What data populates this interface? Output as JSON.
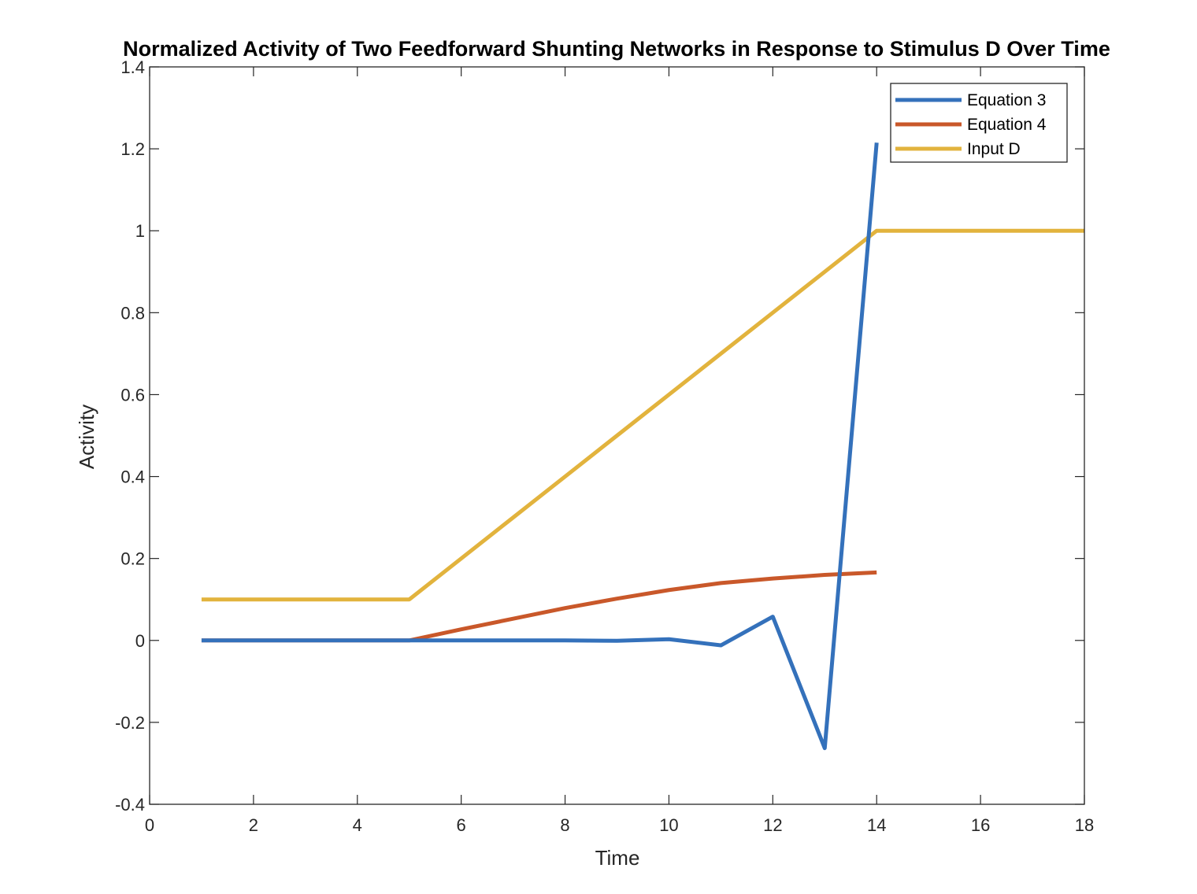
{
  "chart_data": {
    "type": "line",
    "title": "Normalized Activity of Two Feedforward Shunting Networks in Response to Stimulus D Over Time",
    "xlabel": "Time",
    "ylabel": "Activity",
    "xlim": [
      0,
      18
    ],
    "ylim": [
      -0.4,
      1.4
    ],
    "xticks": [
      0,
      2,
      4,
      6,
      8,
      10,
      12,
      14,
      16,
      18
    ],
    "xtick_labels": [
      "0",
      "2",
      "4",
      "6",
      "8",
      "10",
      "12",
      "14",
      "16",
      "18"
    ],
    "yticks": [
      -0.4,
      -0.2,
      0,
      0.2,
      0.4,
      0.6,
      0.8,
      1,
      1.2,
      1.4
    ],
    "ytick_labels": [
      "-0.4",
      "-0.2",
      "0",
      "0.2",
      "0.4",
      "0.6",
      "0.8",
      "1",
      "1.2",
      "1.4"
    ],
    "grid": false,
    "legend_position": "top-right",
    "series": [
      {
        "name": "Equation 3",
        "color": "#3471bb",
        "x": [
          1,
          2,
          3,
          4,
          5,
          6,
          7,
          8,
          9,
          10,
          11,
          12,
          13,
          14
        ],
        "y": [
          0,
          0,
          0,
          0,
          0,
          0,
          0,
          0,
          -0.001,
          0.003,
          -0.012,
          0.058,
          -0.263,
          1.215
        ]
      },
      {
        "name": "Equation 4",
        "color": "#c9582a",
        "x": [
          1,
          2,
          3,
          4,
          5,
          6,
          7,
          8,
          9,
          10,
          11,
          12,
          13,
          14
        ],
        "y": [
          0,
          0,
          0,
          0,
          0,
          0.027,
          0.053,
          0.079,
          0.102,
          0.123,
          0.14,
          0.151,
          0.16,
          0.166
        ]
      },
      {
        "name": "Input D",
        "color": "#e2b33d",
        "x": [
          1,
          2,
          3,
          4,
          5,
          6,
          7,
          8,
          9,
          10,
          11,
          12,
          13,
          14,
          15,
          16,
          17,
          18
        ],
        "y": [
          0.1,
          0.1,
          0.1,
          0.1,
          0.1,
          0.2,
          0.3,
          0.4,
          0.5,
          0.6,
          0.7,
          0.8,
          0.9,
          1,
          1,
          1,
          1,
          1
        ]
      }
    ]
  }
}
